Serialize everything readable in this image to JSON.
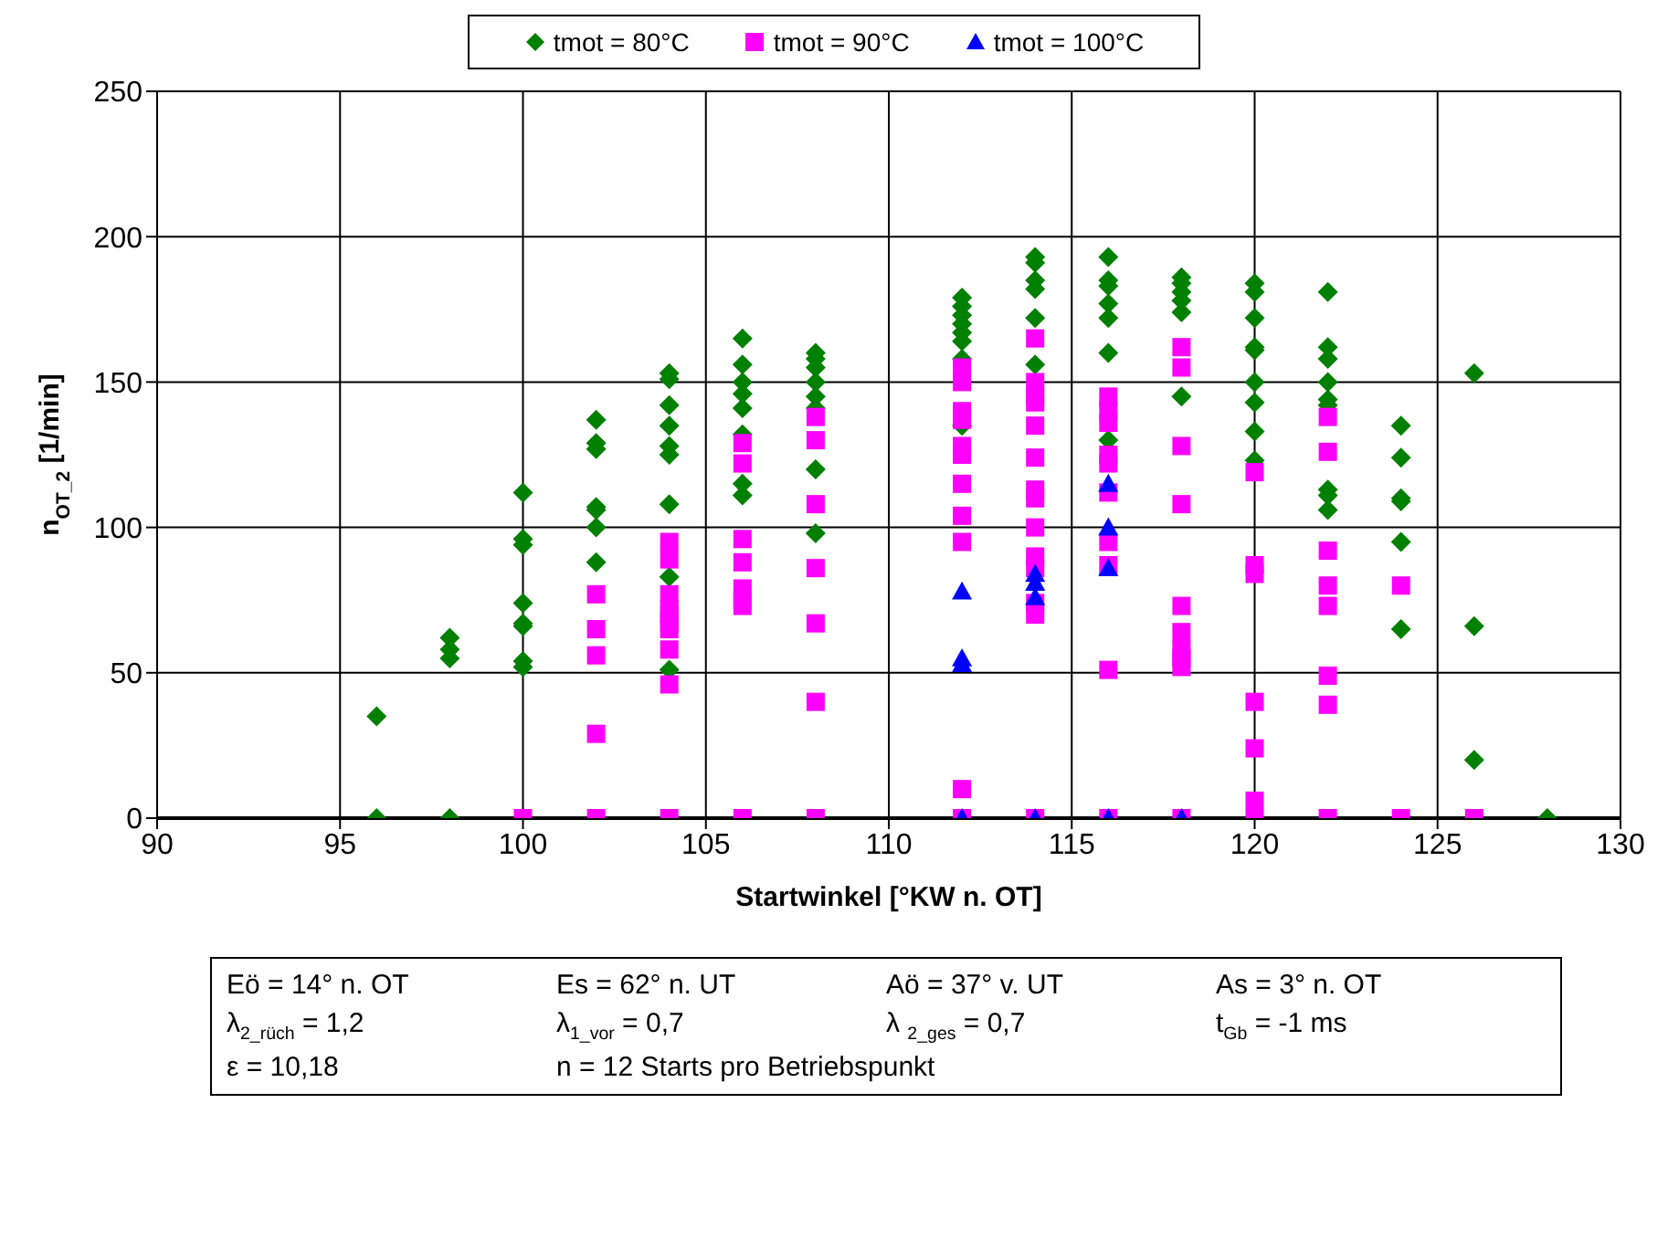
{
  "chart_data": {
    "type": "scatter",
    "xlabel": "Startwinkel  [°KW n. OT]",
    "ylabel": "n$_{OT_2}$  [1/min]",
    "xlim": [
      90,
      130
    ],
    "xticks": [
      90,
      95,
      100,
      105,
      110,
      115,
      120,
      125,
      130
    ],
    "ylim": [
      0,
      250
    ],
    "yticks": [
      0,
      50,
      100,
      150,
      200,
      250
    ],
    "grid": true,
    "legend": "top",
    "series": [
      {
        "name": "tmot = 80°C",
        "color": "#008000",
        "marker": "diamond",
        "x": [
          96,
          96,
          98,
          98,
          98,
          98,
          100,
          100,
          100,
          100,
          100,
          100,
          100,
          100,
          102,
          102,
          102,
          102,
          102,
          102,
          102,
          104,
          104,
          104,
          104,
          104,
          104,
          104,
          104,
          104,
          106,
          106,
          106,
          106,
          106,
          106,
          106,
          106,
          108,
          108,
          108,
          108,
          108,
          108,
          108,
          108,
          112,
          112,
          112,
          112,
          112,
          112,
          112,
          112,
          114,
          114,
          114,
          114,
          114,
          114,
          116,
          116,
          116,
          116,
          116,
          116,
          116,
          118,
          118,
          118,
          118,
          118,
          118,
          120,
          120,
          120,
          120,
          120,
          120,
          120,
          120,
          120,
          122,
          122,
          122,
          122,
          122,
          122,
          122,
          122,
          122,
          124,
          124,
          124,
          124,
          124,
          124,
          126,
          126,
          126,
          128
        ],
        "values": [
          35,
          0,
          62,
          58,
          55,
          0,
          112,
          96,
          94,
          74,
          67,
          66,
          54,
          52,
          137,
          129,
          127,
          107,
          106,
          100,
          88,
          153,
          151,
          142,
          135,
          128,
          125,
          108,
          83,
          51,
          165,
          156,
          150,
          146,
          141,
          132,
          115,
          111,
          160,
          158,
          155,
          150,
          145,
          141,
          120,
          98,
          179,
          176,
          173,
          170,
          167,
          164,
          158,
          135,
          193,
          191,
          185,
          182,
          172,
          156,
          193,
          185,
          183,
          177,
          172,
          160,
          130,
          186,
          184,
          181,
          178,
          174,
          145,
          184,
          181,
          172,
          162,
          161,
          150,
          143,
          133,
          123,
          181,
          162,
          158,
          150,
          144,
          142,
          113,
          111,
          106,
          135,
          124,
          110,
          109,
          95,
          65,
          153,
          66,
          20,
          0
        ]
      },
      {
        "name": "tmot = 90°C",
        "color": "#ff00ff",
        "marker": "square",
        "x": [
          100,
          102,
          102,
          102,
          102,
          102,
          104,
          104,
          104,
          104,
          104,
          104,
          104,
          104,
          104,
          104,
          106,
          106,
          106,
          106,
          106,
          106,
          106,
          106,
          108,
          108,
          108,
          108,
          108,
          108,
          108,
          112,
          112,
          112,
          112,
          112,
          112,
          112,
          112,
          112,
          112,
          112,
          114,
          114,
          114,
          114,
          114,
          114,
          114,
          114,
          114,
          114,
          114,
          114,
          114,
          114,
          116,
          116,
          116,
          116,
          116,
          116,
          116,
          116,
          116,
          116,
          118,
          118,
          118,
          118,
          118,
          118,
          118,
          118,
          118,
          118,
          120,
          120,
          120,
          120,
          120,
          120,
          120,
          122,
          122,
          122,
          122,
          122,
          122,
          122,
          122,
          124,
          124,
          126
        ],
        "values": [
          0,
          77,
          65,
          56,
          29,
          0,
          95,
          89,
          77,
          72,
          70,
          67,
          65,
          58,
          46,
          0,
          129,
          122,
          96,
          88,
          79,
          75,
          73,
          0,
          138,
          130,
          108,
          86,
          67,
          40,
          0,
          155,
          150,
          140,
          137,
          128,
          125,
          115,
          104,
          95,
          10,
          0,
          165,
          150,
          145,
          143,
          135,
          124,
          113,
          110,
          100,
          90,
          86,
          74,
          70,
          0,
          145,
          140,
          136,
          125,
          122,
          112,
          95,
          87,
          51,
          0,
          162,
          155,
          128,
          108,
          73,
          64,
          58,
          55,
          52,
          0,
          119,
          87,
          84,
          40,
          24,
          6,
          0,
          138,
          126,
          92,
          80,
          73,
          49,
          39,
          0,
          80,
          0,
          0
        ]
      },
      {
        "name": "tmot = 100°C",
        "color": "#0000ff",
        "marker": "triangle",
        "x": [
          112,
          112,
          112,
          112,
          114,
          114,
          114,
          114,
          116,
          116,
          116,
          116,
          118
        ],
        "values": [
          78,
          55,
          53,
          0,
          84,
          81,
          76,
          0,
          115,
          100,
          86,
          0,
          0
        ]
      }
    ],
    "annotations": [
      "Eö = 14° n. OT",
      "Es = 62° n. UT",
      "Aö = 37° v. UT",
      "As =  3° n. OT",
      "λ$_{2_rüch}$ = 1,2",
      "λ$_{1_vor}$ = 0,7",
      "λ $_{2_ges}$ = 0,7",
      "t$_{Gb}$ =  -1 ms",
      "ε = 10,18",
      "n = 12 Starts pro Betriebspunkt"
    ]
  }
}
